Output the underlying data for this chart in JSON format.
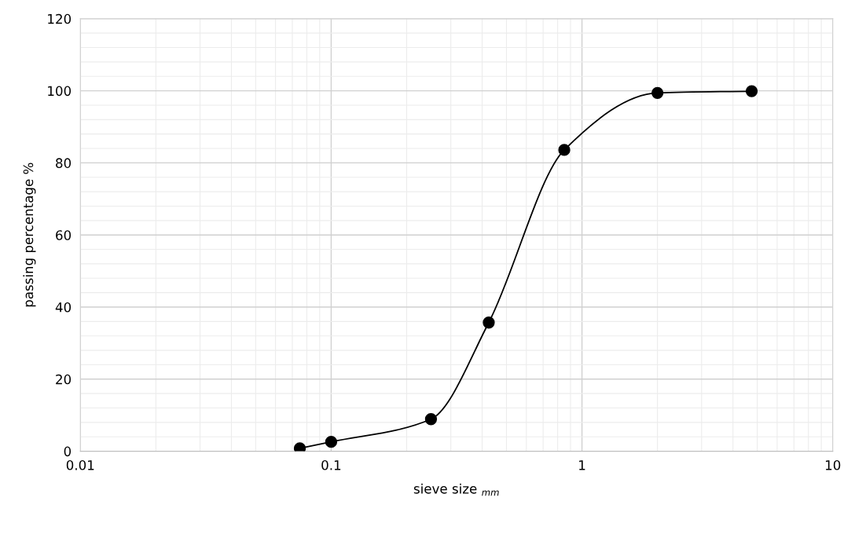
{
  "chart_data": {
    "type": "line",
    "xlabel": "sieve size $_{mm}$",
    "ylabel": "passing percentage %",
    "log": "x",
    "x": [
      0.075,
      0.1,
      0.25,
      0.425,
      0.85,
      2,
      4.75
    ],
    "series": [
      {
        "color": "#000000",
        "values": [
          0.8,
          2.6,
          8.9,
          35.7,
          83.6,
          99.4,
          99.9
        ]
      }
    ],
    "xlim": [
      0.01,
      10
    ],
    "xticks": [
      0.01,
      0.1,
      1,
      10
    ],
    "ylim": [
      0,
      120
    ],
    "yticks": [
      0,
      20,
      40,
      60,
      80,
      100,
      120
    ],
    "grid": true,
    "marker": "circle",
    "line_style": "solid"
  }
}
